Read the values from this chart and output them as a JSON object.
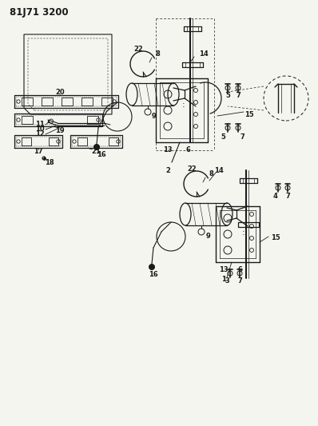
{
  "title": "81J71 3200",
  "bg_color": "#f5f5f0",
  "line_color": "#1a1a1a",
  "title_fontsize": 8.5
}
